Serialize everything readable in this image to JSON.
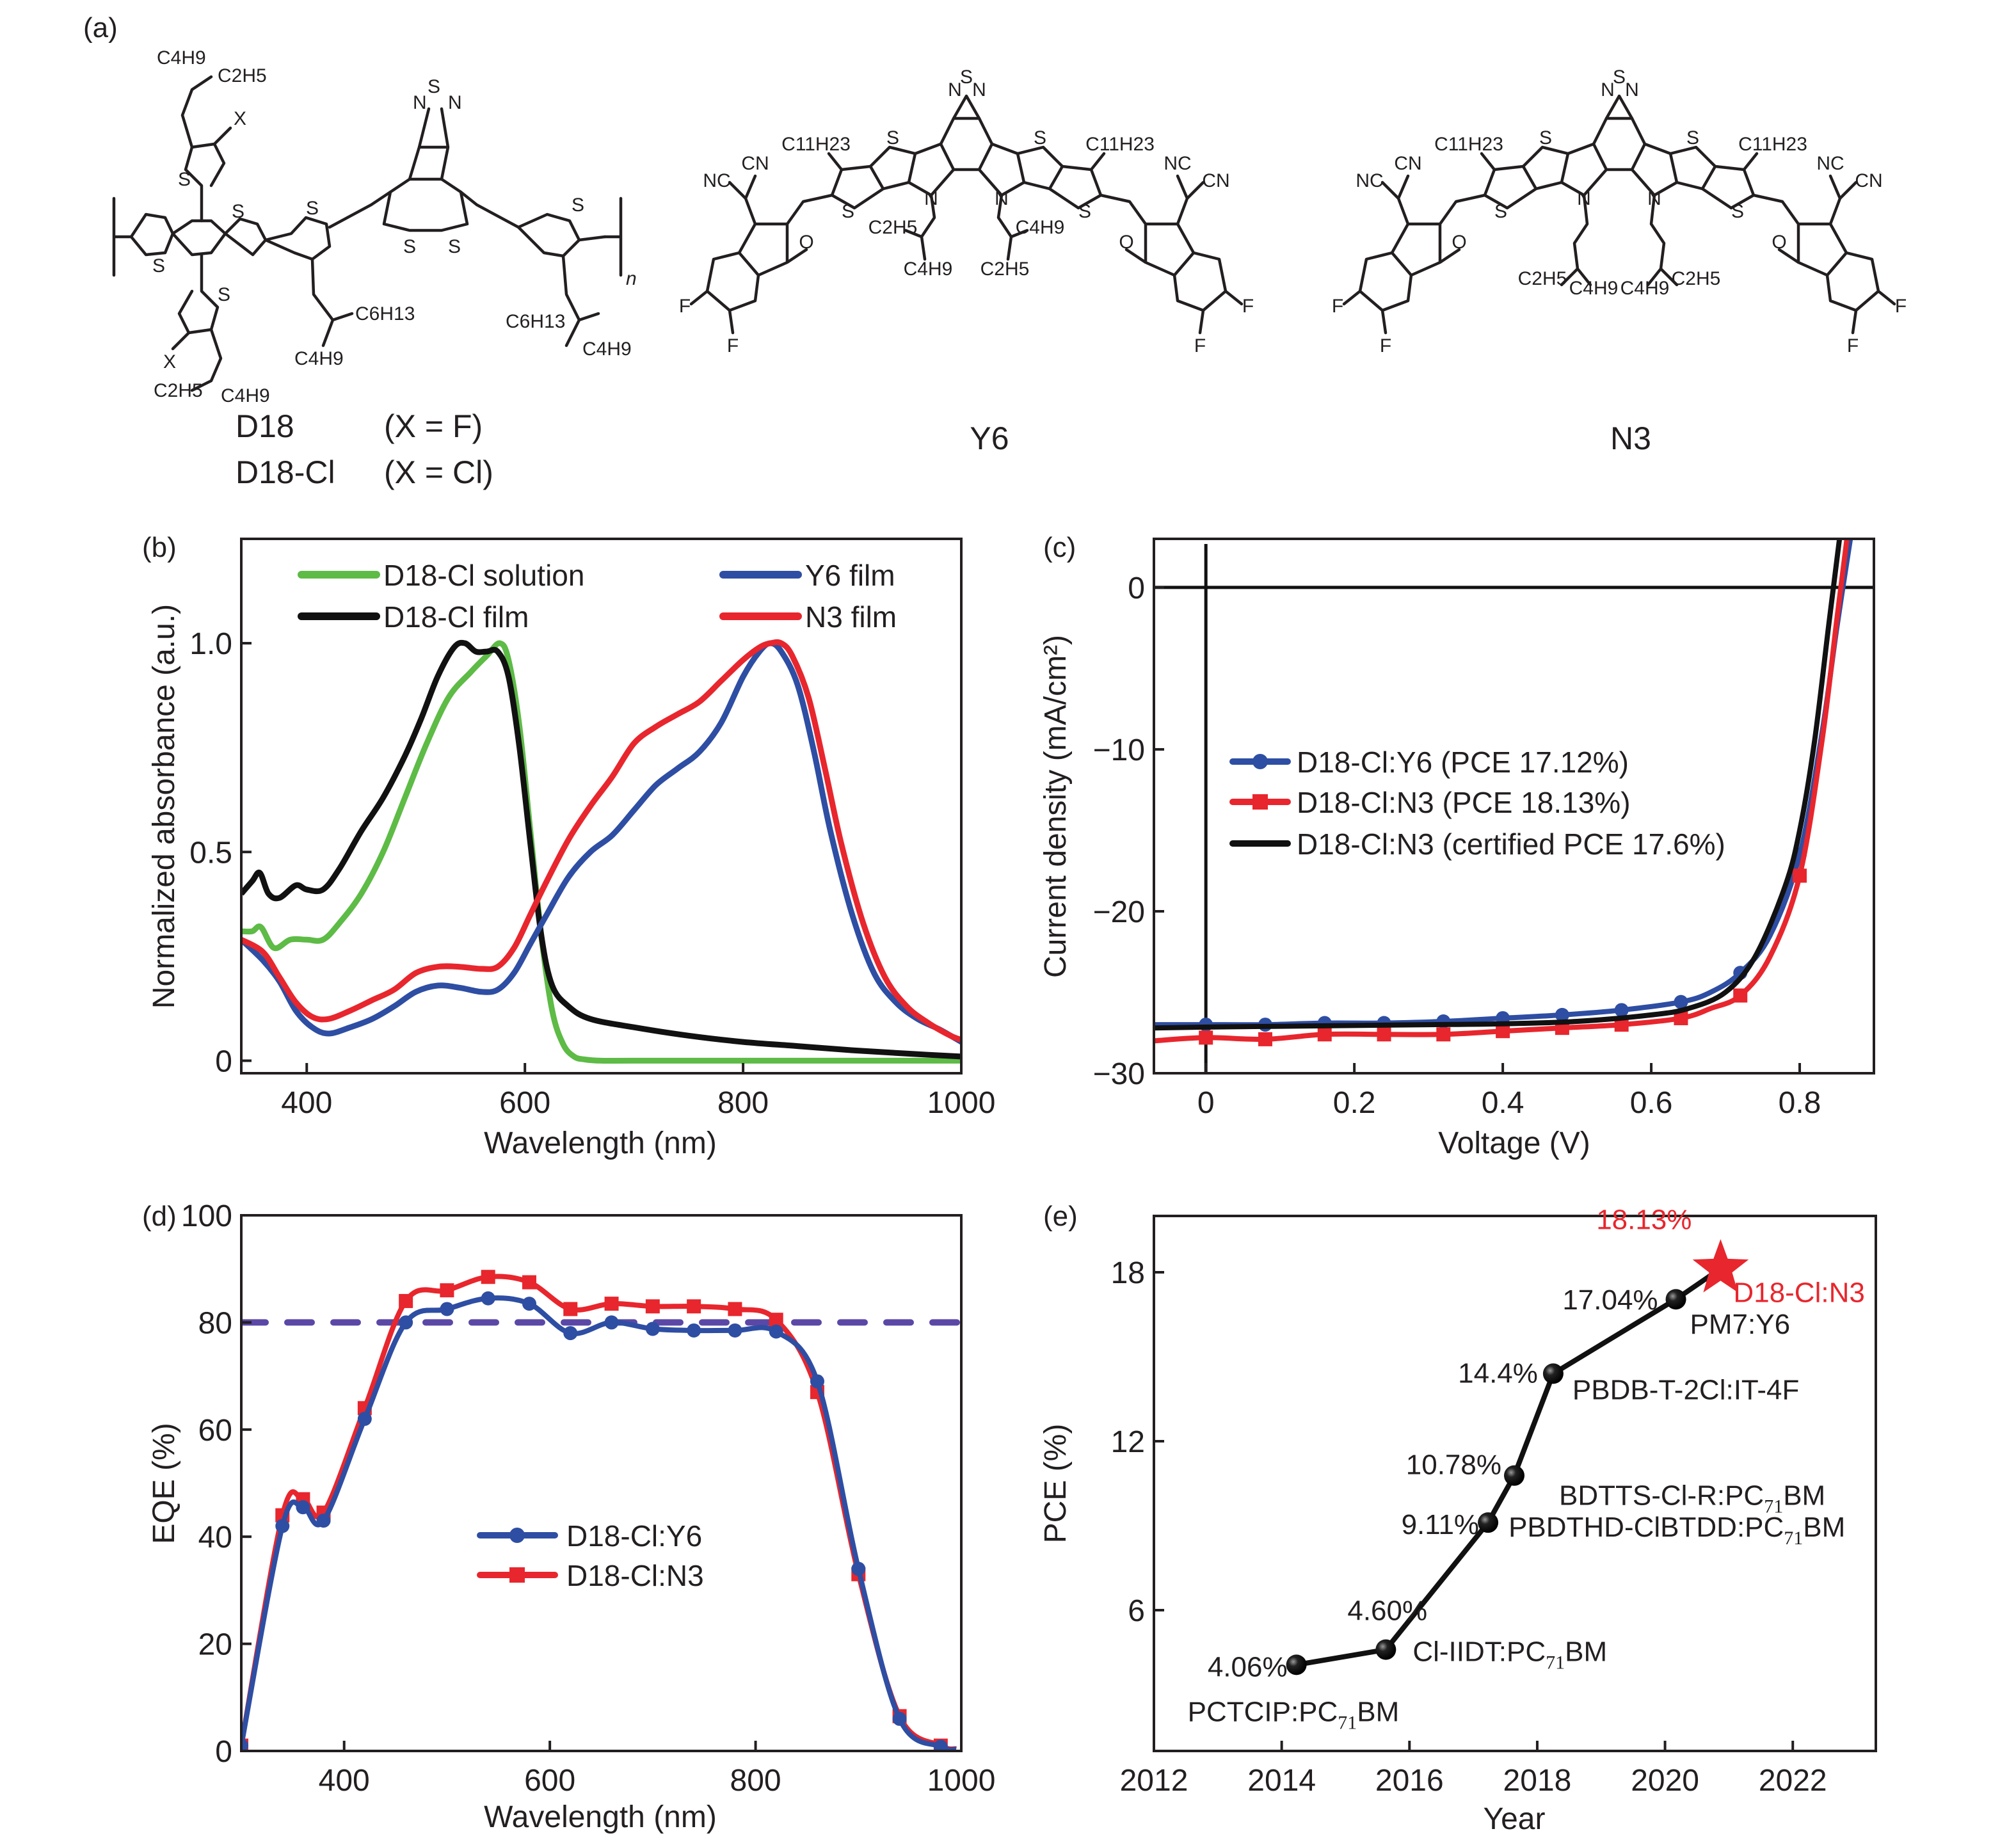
{
  "panel_labels": {
    "a": "(a)",
    "b": "(b)",
    "c": "(c)",
    "d": "(d)",
    "e": "(e)"
  },
  "panel_a": {
    "d18": {
      "name": "D18",
      "x_def": "(X = F)",
      "name_cl": "D18-Cl",
      "x_def_cl": "(X = Cl)",
      "atoms": {
        "S": "S",
        "N": "N",
        "X": "X",
        "n": "n",
        "side_top": [
          "C4H9",
          "C2H5"
        ],
        "side_bottom": [
          "C2H5",
          "C4H9"
        ],
        "side_mid": [
          "C6H13",
          "C4H9"
        ],
        "side_right": [
          "C6H13",
          "C4H9"
        ]
      }
    },
    "y6": {
      "name": "Y6",
      "labels": [
        "C11H23",
        "C11H23",
        "CN",
        "NC",
        "NC",
        "CN",
        "O",
        "O",
        "F",
        "F",
        "F",
        "F",
        "N",
        "N",
        "S",
        "S",
        "S",
        "S",
        "S",
        "N",
        "N",
        "C2H5",
        "C4H9",
        "C2H5",
        "C4H9"
      ]
    },
    "n3": {
      "name": "N3",
      "labels": [
        "C11H23",
        "C11H23",
        "CN",
        "NC",
        "NC",
        "CN",
        "O",
        "O",
        "F",
        "F",
        "F",
        "F",
        "N",
        "N",
        "S",
        "S",
        "S",
        "S",
        "S",
        "N",
        "N",
        "C2H5",
        "C4H9",
        "C4H9",
        "C2H5"
      ]
    }
  },
  "chart_data": [
    {
      "id": "b",
      "type": "line",
      "xlabel": "Wavelength (nm)",
      "ylabel": "Normalized absorbance (a.u.)",
      "xlim": [
        340,
        1000
      ],
      "ylim": [
        -0.03,
        1.25
      ],
      "xticks": [
        400,
        600,
        800,
        1000
      ],
      "yticks": [
        0,
        0.5,
        1.0
      ],
      "ytick_labels": [
        "0",
        "0.5",
        "1.0"
      ],
      "legend_placement": "top",
      "series": [
        {
          "name": "D18-Cl solution",
          "color": "#5dbb46",
          "x": [
            340,
            350,
            358,
            370,
            385,
            400,
            415,
            430,
            450,
            470,
            490,
            510,
            530,
            550,
            565,
            577,
            585,
            595,
            605,
            615,
            625,
            635,
            645,
            655,
            670,
            700,
            800,
            900,
            1000
          ],
          "y": [
            0.31,
            0.31,
            0.32,
            0.27,
            0.29,
            0.29,
            0.29,
            0.33,
            0.4,
            0.5,
            0.63,
            0.76,
            0.87,
            0.93,
            0.97,
            1.0,
            0.96,
            0.8,
            0.55,
            0.3,
            0.12,
            0.04,
            0.01,
            0.003,
            0.0,
            0.0,
            0.0,
            0.0,
            0.0
          ]
        },
        {
          "name": "D18-Cl film",
          "color": "#111111",
          "x": [
            340,
            350,
            357,
            365,
            375,
            390,
            400,
            415,
            430,
            450,
            470,
            490,
            505,
            520,
            535,
            545,
            555,
            565,
            575,
            585,
            595,
            605,
            615,
            625,
            640,
            660,
            700,
            750,
            800,
            850,
            900,
            950,
            1000
          ],
          "y": [
            0.4,
            0.43,
            0.45,
            0.4,
            0.39,
            0.42,
            0.41,
            0.41,
            0.46,
            0.55,
            0.63,
            0.73,
            0.82,
            0.92,
            0.99,
            1.0,
            0.98,
            0.98,
            0.98,
            0.92,
            0.75,
            0.52,
            0.3,
            0.18,
            0.13,
            0.1,
            0.08,
            0.06,
            0.045,
            0.035,
            0.025,
            0.017,
            0.01
          ]
        },
        {
          "name": "Y6 film",
          "color": "#2e4ea3",
          "x": [
            340,
            360,
            375,
            390,
            405,
            420,
            440,
            460,
            480,
            500,
            520,
            540,
            560,
            575,
            590,
            605,
            620,
            640,
            660,
            680,
            700,
            720,
            740,
            760,
            780,
            800,
            815,
            825,
            835,
            850,
            865,
            880,
            900,
            920,
            940,
            960,
            980,
            1000
          ],
          "y": [
            0.29,
            0.24,
            0.19,
            0.12,
            0.08,
            0.065,
            0.08,
            0.1,
            0.13,
            0.165,
            0.18,
            0.175,
            0.165,
            0.17,
            0.21,
            0.28,
            0.35,
            0.44,
            0.5,
            0.54,
            0.6,
            0.66,
            0.7,
            0.74,
            0.81,
            0.92,
            0.98,
            1.0,
            0.98,
            0.9,
            0.74,
            0.55,
            0.35,
            0.21,
            0.14,
            0.1,
            0.075,
            0.045
          ]
        },
        {
          "name": "N3 film",
          "color": "#e8262d",
          "x": [
            340,
            360,
            375,
            390,
            405,
            420,
            440,
            460,
            480,
            500,
            520,
            540,
            560,
            575,
            590,
            605,
            620,
            640,
            660,
            680,
            700,
            720,
            740,
            760,
            780,
            800,
            815,
            825,
            835,
            845,
            860,
            875,
            890,
            910,
            930,
            950,
            970,
            990,
            1000
          ],
          "y": [
            0.29,
            0.26,
            0.2,
            0.14,
            0.105,
            0.1,
            0.12,
            0.145,
            0.17,
            0.21,
            0.225,
            0.225,
            0.22,
            0.225,
            0.27,
            0.35,
            0.43,
            0.53,
            0.61,
            0.68,
            0.76,
            0.8,
            0.83,
            0.86,
            0.91,
            0.96,
            0.99,
            1.0,
            1.0,
            0.97,
            0.87,
            0.7,
            0.52,
            0.33,
            0.2,
            0.13,
            0.09,
            0.06,
            0.05
          ]
        }
      ]
    },
    {
      "id": "c",
      "type": "line",
      "xlabel": "Voltage (V)",
      "ylabel": "Current density (mA/cm²)",
      "xlim": [
        -0.07,
        0.9
      ],
      "ylim": [
        -30,
        3
      ],
      "xticks": [
        0,
        0.2,
        0.4,
        0.6,
        0.8
      ],
      "xtick_labels": [
        "0",
        "0.2",
        "0.4",
        "0.6",
        "0.8"
      ],
      "yticks": [
        0,
        -10,
        -20,
        -30
      ],
      "ytick_labels": [
        "0",
        "−10",
        "−20",
        "−30"
      ],
      "legend_placement": "center-left",
      "series": [
        {
          "name": "D18-Cl:Y6 (PCE 17.12%)",
          "color": "#2e4ea3",
          "marker": "circle",
          "x": [
            -0.07,
            0.0,
            0.08,
            0.16,
            0.24,
            0.32,
            0.4,
            0.48,
            0.56,
            0.64,
            0.68,
            0.72,
            0.76,
            0.8,
            0.83,
            0.85,
            0.87
          ],
          "y": [
            -27.0,
            -27.0,
            -27.0,
            -26.9,
            -26.9,
            -26.8,
            -26.6,
            -26.4,
            -26.1,
            -25.6,
            -25.0,
            -23.8,
            -21.5,
            -16.5,
            -9.0,
            -2.5,
            3.5
          ],
          "marker_x": [
            0,
            0.08,
            0.16,
            0.24,
            0.32,
            0.4,
            0.48,
            0.56,
            0.64,
            0.72,
            0.8
          ]
        },
        {
          "name": "D18-Cl:N3 (PCE 18.13%)",
          "color": "#e8262d",
          "marker": "square",
          "x": [
            -0.07,
            0.0,
            0.08,
            0.16,
            0.24,
            0.32,
            0.4,
            0.48,
            0.56,
            0.64,
            0.68,
            0.72,
            0.76,
            0.8,
            0.83,
            0.85,
            0.865
          ],
          "y": [
            -28.0,
            -27.8,
            -27.9,
            -27.6,
            -27.6,
            -27.6,
            -27.4,
            -27.2,
            -27.0,
            -26.6,
            -26.0,
            -25.2,
            -22.8,
            -17.8,
            -9.5,
            -2.0,
            3.5
          ],
          "marker_x": [
            0,
            0.08,
            0.16,
            0.24,
            0.32,
            0.4,
            0.48,
            0.56,
            0.64,
            0.72,
            0.8
          ]
        },
        {
          "name": "D18-Cl:N3 (certified PCE 17.6%)",
          "color": "#111111",
          "marker": "none",
          "x": [
            -0.07,
            0.0,
            0.1,
            0.2,
            0.3,
            0.4,
            0.5,
            0.6,
            0.65,
            0.7,
            0.74,
            0.78,
            0.8,
            0.82,
            0.84,
            0.855
          ],
          "y": [
            -27.2,
            -27.15,
            -27.1,
            -27.05,
            -27.0,
            -26.95,
            -26.8,
            -26.4,
            -26.0,
            -25.0,
            -22.8,
            -18.5,
            -15.0,
            -9.5,
            -2.0,
            3.5
          ]
        }
      ]
    },
    {
      "id": "d",
      "type": "line",
      "xlabel": "Wavelength (nm)",
      "ylabel": "EQE (%)",
      "xlim": [
        300,
        1000
      ],
      "ylim": [
        0,
        100
      ],
      "xticks": [
        400,
        600,
        800,
        1000
      ],
      "yticks": [
        0,
        20,
        40,
        60,
        80,
        100
      ],
      "reference_line": {
        "y": 80,
        "style": "dashed",
        "color": "#5b48a6"
      },
      "legend_placement": "center",
      "series": [
        {
          "name": "D18-Cl:Y6",
          "color": "#2e4ea3",
          "marker": "circle",
          "x": [
            300,
            340,
            360,
            380,
            420,
            460,
            500,
            540,
            580,
            620,
            660,
            700,
            740,
            780,
            820,
            860,
            900,
            940,
            980,
            995
          ],
          "y": [
            1,
            42,
            45.5,
            43,
            62,
            80,
            82.5,
            84.5,
            83.5,
            78,
            80,
            78.8,
            78.5,
            78.5,
            78.3,
            69,
            34,
            6,
            0.8,
            0.3
          ]
        },
        {
          "name": "D18-Cl:N3",
          "color": "#e8262d",
          "marker": "square",
          "x": [
            300,
            340,
            360,
            380,
            420,
            460,
            500,
            540,
            580,
            620,
            660,
            700,
            740,
            780,
            820,
            860,
            900,
            940,
            980,
            995
          ],
          "y": [
            1,
            44,
            47,
            44.5,
            64,
            84,
            86,
            88.5,
            87.5,
            82.5,
            83.5,
            83,
            83,
            82.5,
            80.5,
            67,
            33,
            6.5,
            1.0,
            0.4
          ]
        }
      ]
    },
    {
      "id": "e",
      "type": "line",
      "xlabel": "Year",
      "ylabel": "PCE (%)",
      "xlim": [
        2012,
        2023.3
      ],
      "ylim": [
        1,
        20
      ],
      "xticks": [
        2012,
        2014,
        2016,
        2018,
        2020,
        2022
      ],
      "yticks": [
        6,
        12,
        18
      ],
      "points": [
        {
          "year": 2014.23,
          "pce": 4.06,
          "value_label": "4.06%",
          "name": "PCTCIP:PC",
          "sub": "71",
          "suffix": "BM"
        },
        {
          "year": 2015.63,
          "pce": 4.6,
          "value_label": "4.60%",
          "name": "Cl-IIDT:PC",
          "sub": "71",
          "suffix": "BM"
        },
        {
          "year": 2017.23,
          "pce": 9.11,
          "value_label": "9.11%",
          "name": "PBDTHD-ClBTDD:PC",
          "sub": "71",
          "suffix": "BM"
        },
        {
          "year": 2017.64,
          "pce": 10.78,
          "value_label": "10.78%",
          "name": "BDTTS-Cl-R:PC",
          "sub": "71",
          "suffix": "BM"
        },
        {
          "year": 2018.25,
          "pce": 14.4,
          "value_label": "14.4%",
          "name": "PBDB-T-2Cl:IT-4F",
          "sub": "",
          "suffix": ""
        },
        {
          "year": 2020.17,
          "pce": 17.04,
          "value_label": "17.04%",
          "name": "PM7:Y6",
          "sub": "",
          "suffix": ""
        },
        {
          "year": 2020.87,
          "pce": 18.13,
          "value_label": "18.13%",
          "name": "D18-Cl:N3",
          "sub": "",
          "suffix": "",
          "highlight": true,
          "marker": "star"
        }
      ],
      "highlight_color": "#e8262d",
      "point_color": "#111111"
    }
  ]
}
